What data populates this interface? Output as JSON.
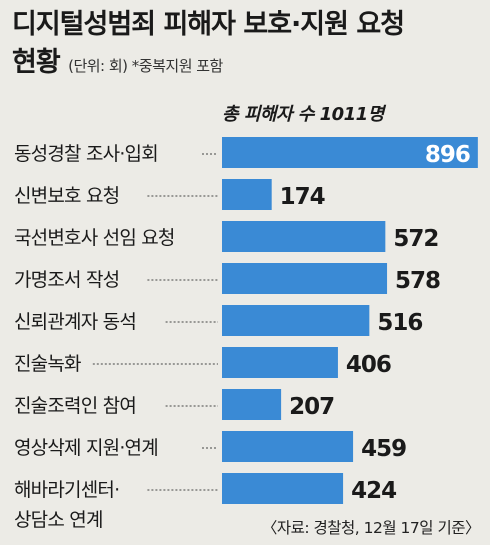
{
  "title_line1": "디지털성범죄 피해자 보호·지원 요청",
  "title_line2": "현황",
  "unit_note": "(단위: 회) *중복지원 포함",
  "source": "〈자료: 경찰청, 12월 17일 기준〉",
  "colors": {
    "bar": "#3a8ad5",
    "background": "#ecebe6",
    "text": "#1a1a1a",
    "bar_label_inside": "#ffffff"
  },
  "chart_data": {
    "type": "bar",
    "orientation": "horizontal",
    "title": "디지털성범죄 피해자 보호·지원 요청 현황",
    "annotation": "총 피해자 수 1011명",
    "unit": "회",
    "categories": [
      [
        "동성경찰 조사·입회"
      ],
      [
        "신변보호 요청"
      ],
      [
        "국선변호사 선임 요청"
      ],
      [
        "가명조서 작성"
      ],
      [
        "신뢰관계자 동석"
      ],
      [
        "진술녹화"
      ],
      [
        "진술조력인 참여"
      ],
      [
        "영상삭제 지원·연계"
      ],
      [
        "해바라기센터·",
        "상담소 연계"
      ]
    ],
    "values": [
      896,
      174,
      572,
      578,
      516,
      406,
      207,
      459,
      424
    ],
    "xlim": [
      0,
      900
    ],
    "grid": false,
    "legend": "none"
  }
}
